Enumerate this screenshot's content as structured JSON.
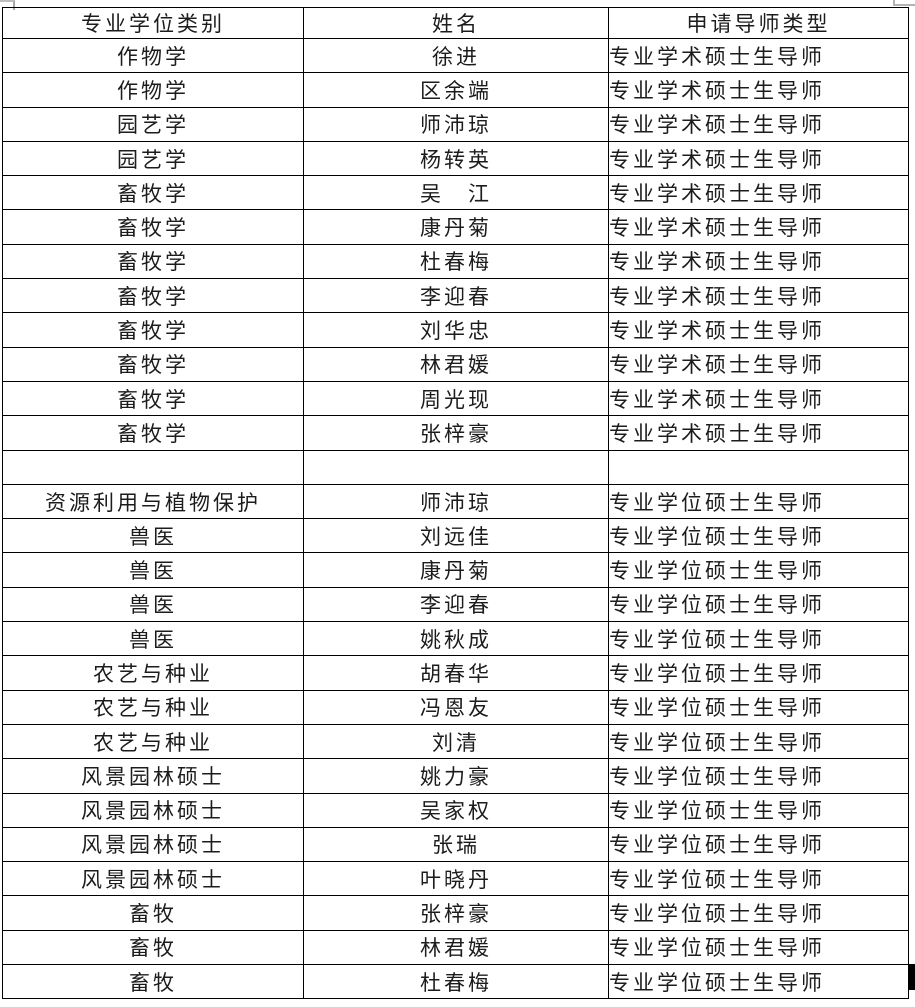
{
  "table": {
    "headers": [
      "专业学位类别",
      "姓名",
      "申请导师类型"
    ],
    "rows": [
      [
        "作物学",
        "徐进",
        "专业学术硕士生导师"
      ],
      [
        "作物学",
        "区余端",
        "专业学术硕士生导师"
      ],
      [
        "园艺学",
        "师沛琼",
        "专业学术硕士生导师"
      ],
      [
        "园艺学",
        "杨转英",
        "专业学术硕士生导师"
      ],
      [
        "畜牧学",
        "吴　江",
        "专业学术硕士生导师"
      ],
      [
        "畜牧学",
        "康丹菊",
        "专业学术硕士生导师"
      ],
      [
        "畜牧学",
        "杜春梅",
        "专业学术硕士生导师"
      ],
      [
        "畜牧学",
        "李迎春",
        "专业学术硕士生导师"
      ],
      [
        "畜牧学",
        "刘华忠",
        "专业学术硕士生导师"
      ],
      [
        "畜牧学",
        "林君媛",
        "专业学术硕士生导师"
      ],
      [
        "畜牧学",
        "周光现",
        "专业学术硕士生导师"
      ],
      [
        "畜牧学",
        "张梓豪",
        "专业学术硕士生导师"
      ],
      [
        "",
        "",
        ""
      ],
      [
        "资源利用与植物保护",
        "师沛琼",
        "专业学位硕士生导师"
      ],
      [
        "兽医",
        "刘远佳",
        "专业学位硕士生导师"
      ],
      [
        "兽医",
        "康丹菊",
        "专业学位硕士生导师"
      ],
      [
        "兽医",
        "李迎春",
        "专业学位硕士生导师"
      ],
      [
        "兽医",
        "姚秋成",
        "专业学位硕士生导师"
      ],
      [
        "农艺与种业",
        "胡春华",
        "专业学位硕士生导师"
      ],
      [
        "农艺与种业",
        "冯恩友",
        "专业学位硕士生导师"
      ],
      [
        "农艺与种业",
        "刘清",
        "专业学位硕士生导师"
      ],
      [
        "风景园林硕士",
        "姚力豪",
        "专业学位硕士生导师"
      ],
      [
        "风景园林硕士",
        "吴家权",
        "专业学位硕士生导师"
      ],
      [
        "风景园林硕士",
        "张瑞",
        "专业学位硕士生导师"
      ],
      [
        "风景园林硕士",
        "叶晓丹",
        "专业学位硕士生导师"
      ],
      [
        "畜牧",
        "张梓豪",
        "专业学位硕士生导师"
      ],
      [
        "畜牧",
        "林君媛",
        "专业学位硕士生导师"
      ],
      [
        "畜牧",
        "杜春梅",
        "专业学位硕士生导师"
      ]
    ],
    "colors": {
      "border": "#000000",
      "text": "#1c1c1c",
      "background": "#ffffff",
      "corner_mark": "#b3b3b3",
      "cursor_bar": "#000000"
    }
  }
}
